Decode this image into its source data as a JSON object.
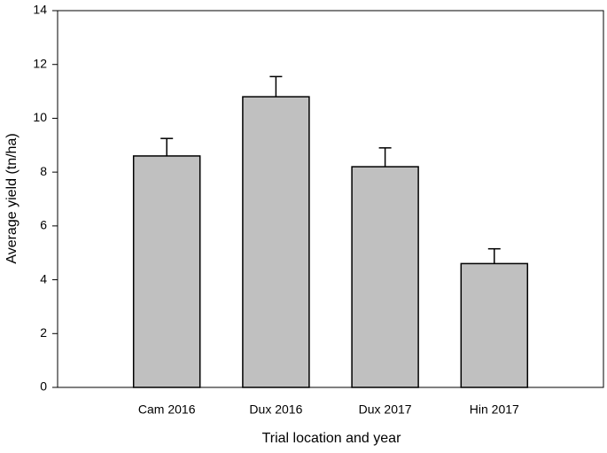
{
  "chart_data": {
    "type": "bar",
    "xlabel": "Trial location and year",
    "ylabel": "Average yield (tn/ha)",
    "categories": [
      "Cam 2016",
      "Dux 2016",
      "Dux 2017",
      "Hin 2017"
    ],
    "values": [
      8.6,
      10.8,
      8.2,
      4.6
    ],
    "errors": [
      0.65,
      0.75,
      0.7,
      0.55
    ],
    "color": "#c0c0c0",
    "ylim": [
      0,
      14
    ],
    "yticks": [
      0,
      2,
      4,
      6,
      8,
      10,
      12,
      14
    ],
    "grid": false
  }
}
